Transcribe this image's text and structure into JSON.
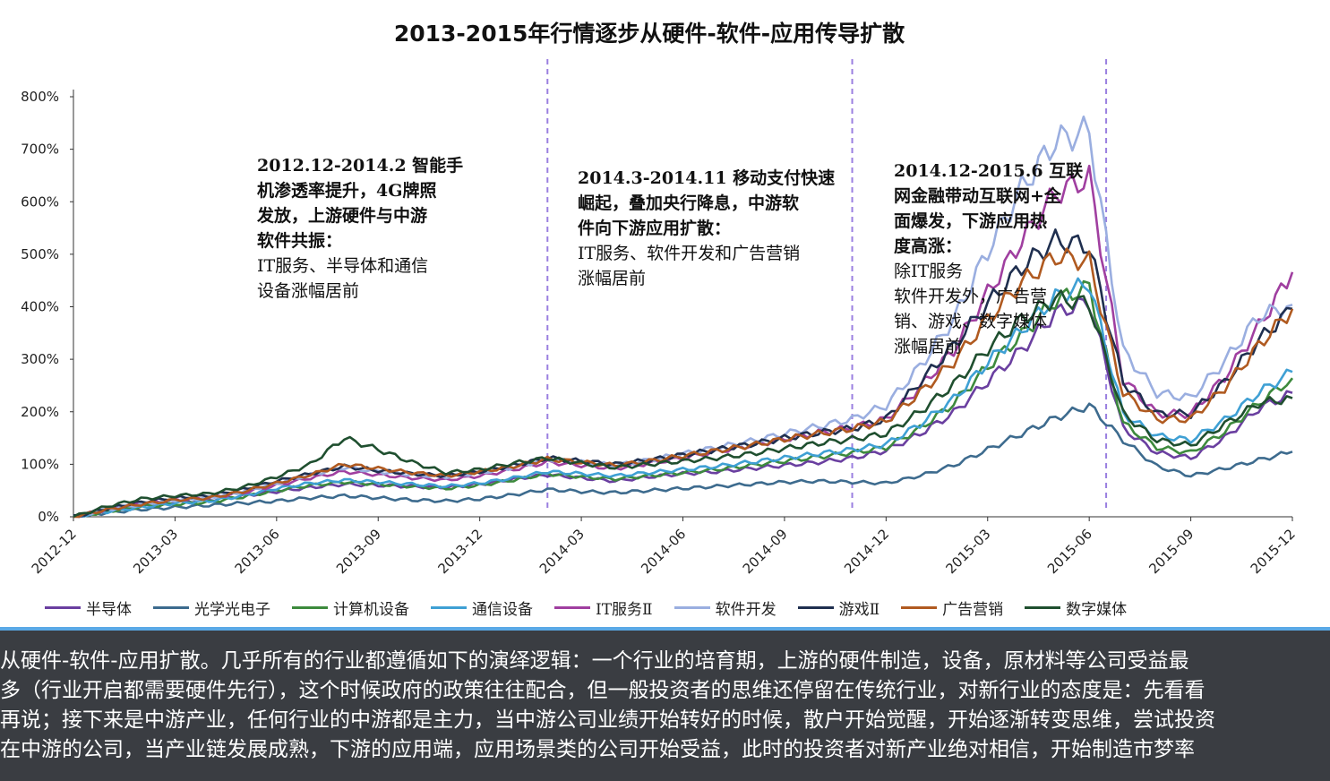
{
  "chart_data": {
    "type": "line",
    "title": "2013-2015年行情逐步从硬件-软件-应用传导扩散",
    "xlabel": "",
    "ylabel": "",
    "y_ticks": [
      "0%",
      "100%",
      "200%",
      "300%",
      "400%",
      "500%",
      "600%",
      "700%",
      "800%"
    ],
    "ylim": [
      0,
      800
    ],
    "x_ticks": [
      "2012-12",
      "2013-03",
      "2013-06",
      "2013-09",
      "2013-12",
      "2014-03",
      "2014-06",
      "2014-09",
      "2014-12",
      "2015-03",
      "2015-06",
      "2015-09",
      "2015-12"
    ],
    "x_months": [
      0,
      1,
      2,
      3,
      4,
      5,
      6,
      7,
      8,
      9,
      10,
      11,
      12,
      13,
      14,
      15,
      16,
      17,
      18,
      19,
      20,
      21,
      22,
      23,
      24,
      25,
      26,
      27,
      28,
      29,
      30,
      31,
      32,
      33,
      34,
      35,
      36
    ],
    "grid": false,
    "legend_position": "bottom",
    "vlines_month_index": [
      14,
      23,
      30.5
    ],
    "series": [
      {
        "name": "半导体",
        "color": "#6a3fa0",
        "values": [
          0,
          12,
          22,
          28,
          32,
          40,
          48,
          56,
          62,
          60,
          58,
          56,
          62,
          72,
          80,
          74,
          68,
          76,
          82,
          86,
          92,
          98,
          104,
          112,
          126,
          158,
          198,
          258,
          318,
          388,
          410,
          168,
          122,
          112,
          150,
          206,
          236
        ]
      },
      {
        "name": "光学光电子",
        "color": "#3d6b8e",
        "values": [
          0,
          8,
          14,
          18,
          22,
          26,
          30,
          36,
          40,
          36,
          32,
          30,
          34,
          42,
          52,
          48,
          46,
          50,
          54,
          58,
          62,
          66,
          68,
          66,
          64,
          78,
          98,
          128,
          158,
          188,
          212,
          146,
          96,
          78,
          92,
          108,
          124
        ]
      },
      {
        "name": "计算机设备",
        "color": "#3d8a3d",
        "values": [
          0,
          10,
          20,
          24,
          28,
          38,
          50,
          60,
          66,
          62,
          58,
          54,
          60,
          70,
          82,
          76,
          72,
          78,
          84,
          90,
          98,
          106,
          114,
          122,
          132,
          168,
          216,
          286,
          346,
          412,
          438,
          178,
          132,
          122,
          162,
          216,
          264
        ]
      },
      {
        "name": "通信设备",
        "color": "#3fa0d4",
        "values": [
          0,
          10,
          18,
          26,
          30,
          40,
          54,
          64,
          70,
          66,
          62,
          58,
          64,
          74,
          86,
          82,
          78,
          84,
          90,
          96,
          104,
          112,
          120,
          128,
          138,
          176,
          224,
          294,
          356,
          418,
          446,
          196,
          154,
          146,
          184,
          236,
          276
        ]
      },
      {
        "name": "IT服务Ⅱ",
        "color": "#a03fa0",
        "values": [
          0,
          14,
          26,
          32,
          36,
          46,
          60,
          74,
          86,
          80,
          74,
          70,
          78,
          90,
          104,
          98,
          92,
          102,
          112,
          124,
          136,
          148,
          160,
          170,
          186,
          246,
          318,
          426,
          526,
          616,
          646,
          262,
          196,
          196,
          266,
          362,
          466
        ]
      },
      {
        "name": "软件开发",
        "color": "#9aaee0",
        "values": [
          0,
          14,
          24,
          32,
          36,
          48,
          64,
          80,
          94,
          86,
          80,
          76,
          84,
          94,
          110,
          104,
          98,
          108,
          120,
          132,
          144,
          158,
          172,
          186,
          212,
          286,
          376,
          506,
          626,
          716,
          736,
          316,
          236,
          226,
          296,
          382,
          404
        ]
      },
      {
        "name": "游戏Ⅱ",
        "color": "#1f2f4f",
        "values": [
          0,
          16,
          28,
          36,
          40,
          52,
          68,
          82,
          96,
          88,
          82,
          78,
          86,
          98,
          112,
          106,
          100,
          108,
          118,
          128,
          138,
          150,
          160,
          168,
          186,
          256,
          326,
          406,
          476,
          526,
          516,
          256,
          196,
          196,
          256,
          336,
          396
        ]
      },
      {
        "name": "广告营销",
        "color": "#b05a20",
        "values": [
          0,
          14,
          24,
          32,
          36,
          48,
          64,
          80,
          100,
          92,
          84,
          78,
          86,
          96,
          110,
          104,
          98,
          106,
          116,
          126,
          136,
          148,
          158,
          168,
          182,
          236,
          296,
          376,
          446,
          496,
          486,
          236,
          186,
          186,
          246,
          326,
          396
        ]
      },
      {
        "name": "数字媒体",
        "color": "#1f4f2f",
        "values": [
          0,
          20,
          34,
          40,
          44,
          56,
          76,
          100,
          150,
          128,
          104,
          84,
          90,
          102,
          112,
          102,
          94,
          100,
          106,
          112,
          120,
          130,
          140,
          148,
          158,
          200,
          252,
          320,
          376,
          416,
          406,
          196,
          146,
          136,
          176,
          216,
          226
        ]
      }
    ],
    "annotations": [
      {
        "head": "2012.12-2014.2 智能手\n机渗透率提升，4G牌照\n发放，上游硬件与中游\n软件共振：",
        "body": "IT服务、半导体和通信\n设备涨幅居前"
      },
      {
        "head": "2014.3-2014.11 移动支付快速\n崛起，叠加央行降息，中游软\n件向下游应用扩散：",
        "body": "IT服务、软件开发和广告营销\n涨幅居前"
      },
      {
        "head": "2014.12-2015.6 互联\n网金融带动互联网+全\n面爆发，下游应用热\n度高涨：",
        "body": "除IT服务\n软件开发外，广告营\n销、游戏、数字媒体\n涨幅居前"
      }
    ]
  },
  "caption": {
    "text": "从硬件-软件-应用扩散。几乎所有的行业都遵循如下的演绎逻辑：一个行业的培育期，上游的硬件制造，设备，原材料等公司受益最\n多（行业开启都需要硬件先行），这个时候政府的政策往往配合，但一般投资者的思维还停留在传统行业，对新行业的态度是：先看看\n再说；接下来是中游产业，任何行业的中游都是主力，当中游公司业绩开始转好的时候，散户开始觉醒，开始逐渐转变思维，尝试投资\n在中游的公司，当产业链发展成熟，下游的应用端，应用场景类的公司开始受益，此时的投资者对新产业绝对相信，开始制造市梦率"
  }
}
